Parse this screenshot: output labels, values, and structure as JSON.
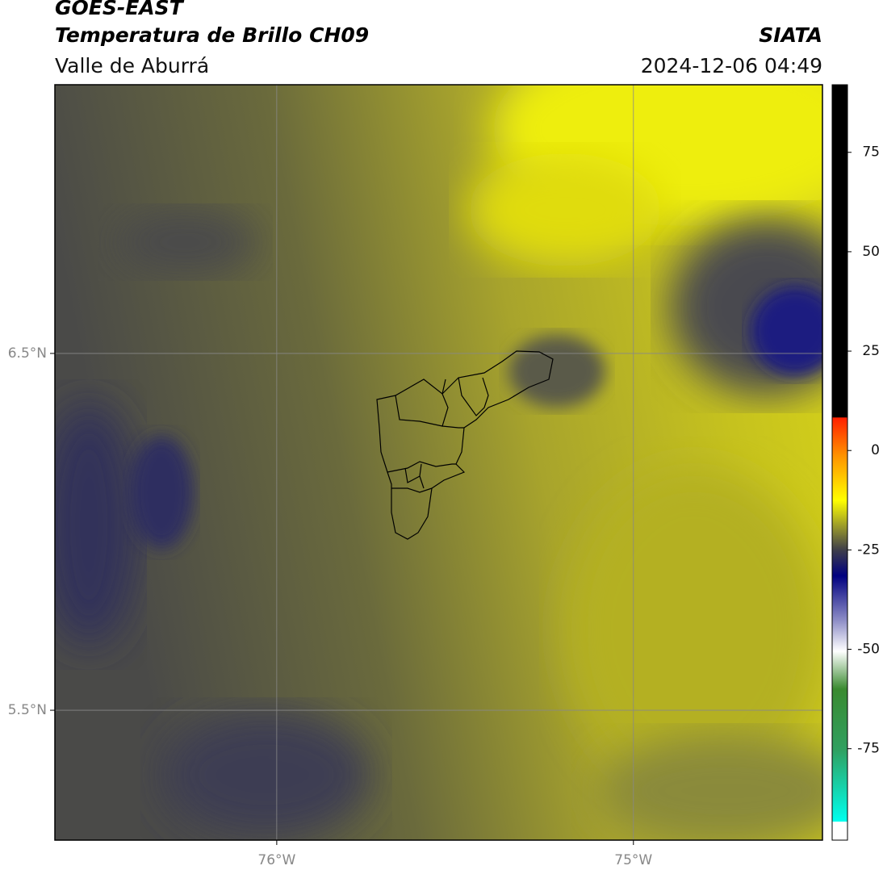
{
  "header": {
    "title": "GOES-EAST",
    "subtitle": "Temperatura de Brillo CH09",
    "region": "Valle de Aburrá",
    "source": "SIATA",
    "datetime": "2024-12-06 04:49"
  },
  "map": {
    "xlim": [
      -76.622,
      -74.47
    ],
    "ylim": [
      5.136,
      7.253
    ],
    "xticks": [
      {
        "value": -76,
        "label": "76°W"
      },
      {
        "value": -75,
        "label": "75°W"
      }
    ],
    "yticks": [
      {
        "value": 6.5,
        "label": "6.5°N"
      },
      {
        "value": 5.5,
        "label": "5.5°N"
      }
    ],
    "grid": true
  },
  "colorbar": {
    "lim": [
      -98,
      92
    ],
    "ticks": [
      75,
      50,
      25,
      0,
      -25,
      -50,
      -75
    ]
  }
}
